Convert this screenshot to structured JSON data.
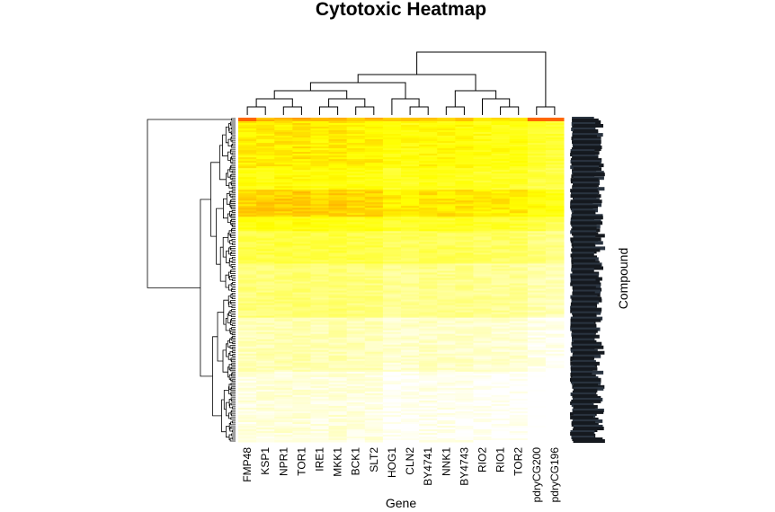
{
  "chart_data": {
    "type": "heatmap",
    "title": "Cytotoxic Heatmap",
    "xlabel": "Gene",
    "ylabel": "Compound",
    "columns": [
      "FMP48",
      "KSP1",
      "NPR1",
      "TOR1",
      "IRE1",
      "MKK1",
      "BCK1",
      "SLT2",
      "HOG1",
      "CLN2",
      "BY4741",
      "NNK1",
      "BY4743",
      "RIO2",
      "RIO1",
      "TOR2",
      "pdryCG200",
      "pdryCG196"
    ],
    "color_scale": {
      "low": "#FFFFFF",
      "mid": "#FFFF00",
      "high": "#FF0000"
    },
    "value_range": [
      0,
      1
    ],
    "row_count": 180,
    "row_dendrogram": true,
    "column_dendrogram": true,
    "row_bands": [
      {
        "rows": [
          0,
          1
        ],
        "value": 0.62
      },
      {
        "rows": [
          2,
          27
        ],
        "value": 0.52
      },
      {
        "rows": [
          28,
          39
        ],
        "value": 0.47
      },
      {
        "rows": [
          40,
          54
        ],
        "value": 0.58
      },
      {
        "rows": [
          55,
          62
        ],
        "value": 0.46
      },
      {
        "rows": [
          63,
          80
        ],
        "value": 0.36
      },
      {
        "rows": [
          81,
          110
        ],
        "value": 0.26
      },
      {
        "rows": [
          111,
          140
        ],
        "value": 0.14
      },
      {
        "rows": [
          141,
          179
        ],
        "value": 0.06
      }
    ],
    "column_offsets": [
      0.0,
      0.01,
      0.02,
      0.02,
      0.0,
      0.02,
      0.0,
      0.0,
      -0.05,
      -0.04,
      -0.02,
      -0.03,
      -0.03,
      -0.05,
      -0.05,
      -0.05,
      -0.1,
      -0.12
    ],
    "column_dendrogram_merges": [
      [
        [
          0
        ],
        [
          1
        ]
      ],
      [
        [
          2
        ],
        [
          3
        ]
      ],
      [
        [
          0,
          1
        ],
        [
          2,
          3
        ]
      ],
      [
        [
          4
        ],
        [
          5
        ]
      ],
      [
        [
          6
        ],
        [
          7
        ]
      ],
      [
        [
          4,
          5
        ],
        [
          6,
          7
        ]
      ],
      [
        [
          0,
          1,
          2,
          3
        ],
        [
          4,
          5,
          6,
          7
        ]
      ],
      [
        [
          9
        ],
        [
          10
        ]
      ],
      [
        [
          8
        ],
        [
          9,
          10
        ]
      ],
      [
        [
          0,
          1,
          2,
          3,
          4,
          5,
          6,
          7
        ],
        [
          8,
          9,
          10
        ]
      ],
      [
        [
          14
        ],
        [
          15
        ]
      ],
      [
        [
          13
        ],
        [
          14,
          15
        ]
      ],
      [
        [
          11
        ],
        [
          12
        ]
      ],
      [
        [
          11,
          12
        ],
        [
          13,
          14,
          15
        ]
      ],
      [
        [
          0,
          1,
          2,
          3,
          4,
          5,
          6,
          7,
          8,
          9,
          10
        ],
        [
          11,
          12,
          13,
          14,
          15
        ]
      ],
      [
        [
          16
        ],
        [
          17
        ]
      ],
      [
        [
          0,
          1,
          2,
          3,
          4,
          5,
          6,
          7,
          8,
          9,
          10,
          11,
          12,
          13,
          14,
          15
        ],
        [
          16,
          17
        ]
      ]
    ]
  }
}
